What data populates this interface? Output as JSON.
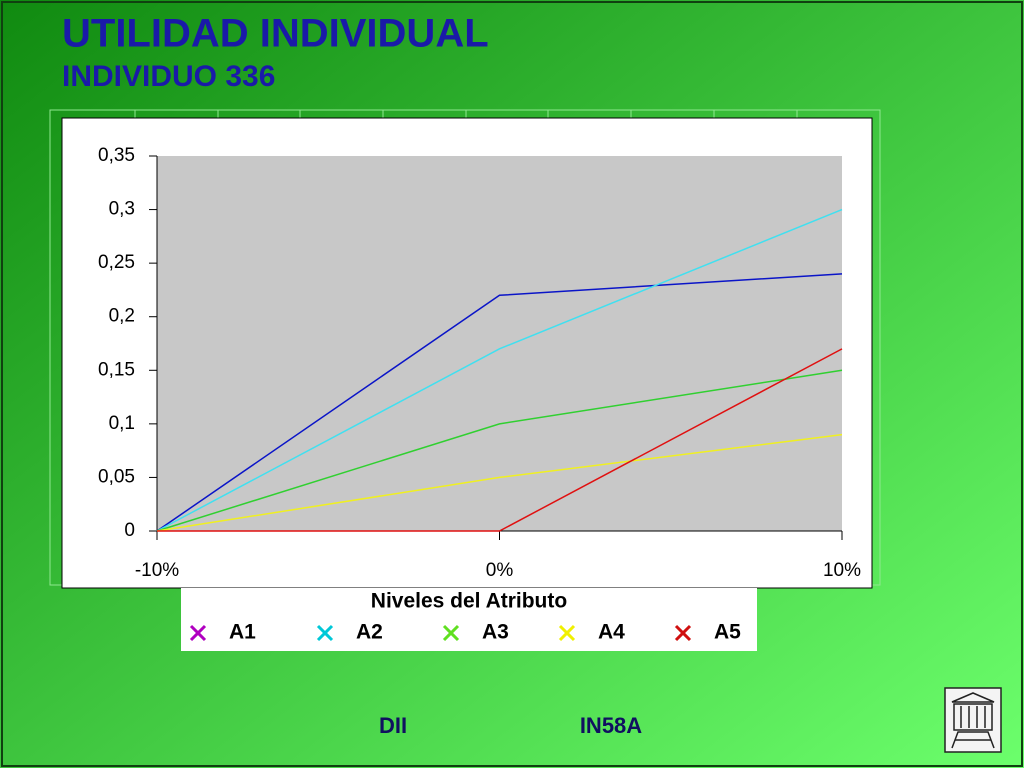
{
  "header": {
    "title": "UTILIDAD INDIVIDUAL",
    "subtitle": "INDIVIDUO 336"
  },
  "chart_data": {
    "type": "line",
    "x_label": "Niveles del Atributo",
    "categories": [
      "-10%",
      "0%",
      "10%"
    ],
    "series": [
      {
        "name": "A1",
        "color": "#0a14c8",
        "marker_color": "#b000c0",
        "values": [
          0,
          0.22,
          0.24
        ]
      },
      {
        "name": "A2",
        "color": "#40e0f0",
        "marker_color": "#00c8d8",
        "values": [
          0,
          0.17,
          0.3
        ]
      },
      {
        "name": "A3",
        "color": "#30d030",
        "marker_color": "#60e020",
        "values": [
          0,
          0.1,
          0.15
        ]
      },
      {
        "name": "A4",
        "color": "#f0f020",
        "marker_color": "#f0f000",
        "values": [
          0,
          0.05,
          0.09
        ]
      },
      {
        "name": "A5",
        "color": "#e01010",
        "marker_color": "#d01010",
        "values": [
          0,
          0,
          0.17
        ]
      }
    ],
    "ylim": [
      0,
      0.35
    ],
    "yticks": [
      0,
      {
        "value": 0.05,
        "label": "0,05"
      },
      {
        "value": 0.1,
        "label": "0,1"
      },
      {
        "value": 0.15,
        "label": "0,15"
      },
      {
        "value": 0.2,
        "label": "0,2"
      },
      {
        "value": 0.25,
        "label": "0,25"
      },
      {
        "value": 0.3,
        "label": "0,3"
      },
      {
        "value": 0.35,
        "label": "0,35"
      }
    ],
    "plot_background": "#c8c8c8"
  },
  "footer": {
    "left": "DII",
    "right": "IN58A"
  }
}
